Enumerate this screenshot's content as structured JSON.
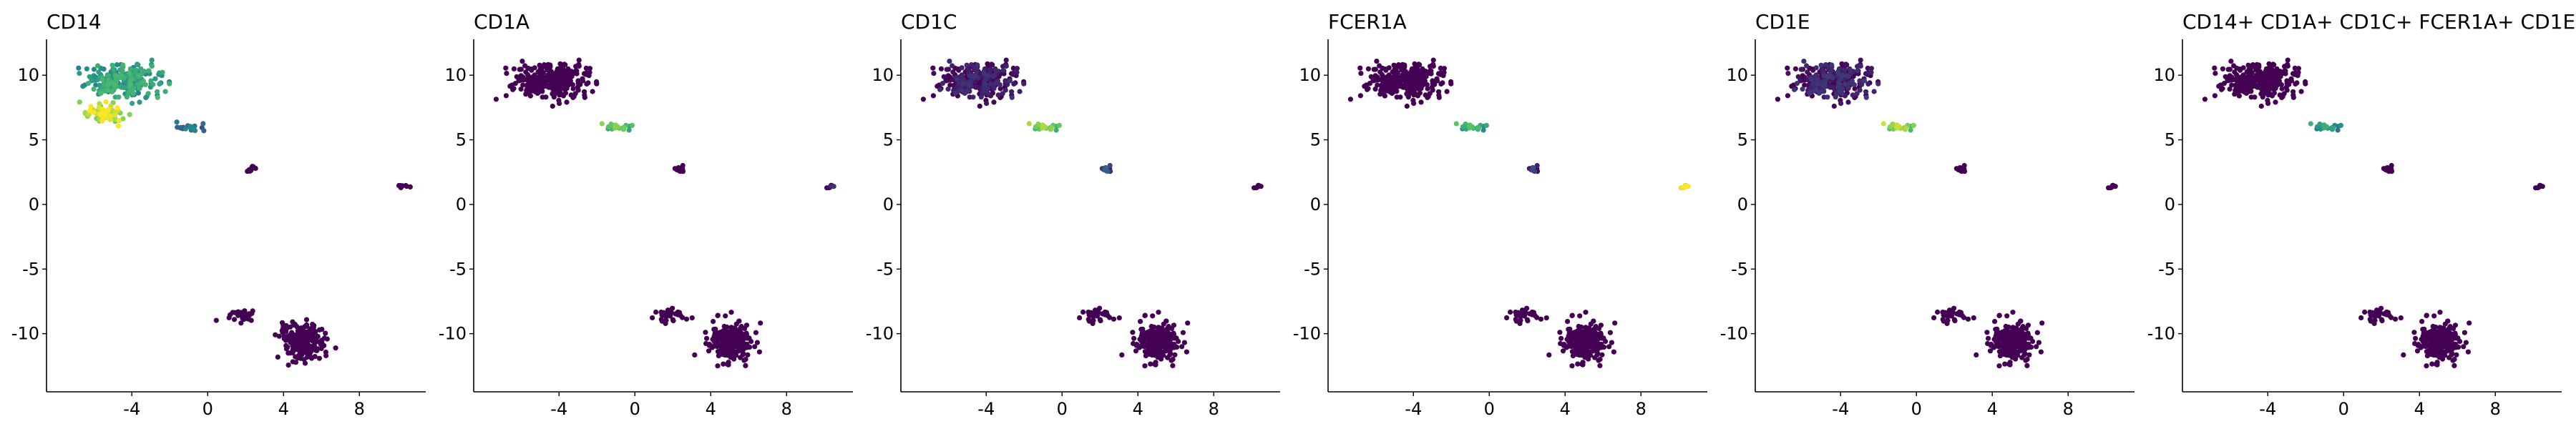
{
  "figure": {
    "panel_titles": [
      "CD14",
      "CD1A",
      "CD1C",
      "FCER1A",
      "CD1E",
      "CD14+ CD1A+ CD1C+ FCER1A+ CD1E"
    ]
  },
  "chart_data": [
    {
      "type": "scatter",
      "title": "CD14",
      "xlabel": "",
      "ylabel": "",
      "xlim": [
        -8.5,
        11.5
      ],
      "ylim": [
        -14.5,
        12.5
      ],
      "xticks": [
        -4,
        0,
        4,
        8
      ],
      "xtick_labels": [
        "-4",
        "0",
        "4",
        "8"
      ],
      "yticks": [
        10,
        5,
        0,
        -5,
        -10
      ],
      "ytick_labels": [
        "10",
        "5",
        "0",
        "-5",
        "-10"
      ],
      "grid": false,
      "legend": "none",
      "colormap": [
        "#440154",
        "#3b528b",
        "#21918c",
        "#5ec962",
        "#fde725"
      ],
      "clusters": [
        {
          "name": "upper cluster",
          "center": [
            -4.5,
            9.5
          ],
          "spread": [
            1.9,
            1.3
          ],
          "n": 260,
          "expression": 0.55
        },
        {
          "name": "hot spot",
          "center": [
            -5.5,
            7.0
          ],
          "spread": [
            0.9,
            0.7
          ],
          "n": 70,
          "expression": 0.9
        },
        {
          "name": "bridge",
          "center": [
            -1.0,
            6.0
          ],
          "spread": [
            1.0,
            0.3
          ],
          "n": 18,
          "expression": 0.35
        },
        {
          "name": "small cluster",
          "center": [
            2.3,
            2.8
          ],
          "spread": [
            0.3,
            0.25
          ],
          "n": 10,
          "expression": 0.0
        },
        {
          "name": "isolated cluster",
          "center": [
            10.3,
            1.4
          ],
          "spread": [
            0.25,
            0.12
          ],
          "n": 8,
          "expression": 0.0
        },
        {
          "name": "lower left group",
          "center": [
            1.8,
            -8.6
          ],
          "spread": [
            0.8,
            0.5
          ],
          "n": 30,
          "expression": 0.0
        },
        {
          "name": "lower main cluster",
          "center": [
            5.0,
            -10.6
          ],
          "spread": [
            1.1,
            1.4
          ],
          "n": 230,
          "expression": 0.0
        }
      ]
    },
    {
      "type": "scatter",
      "title": "CD1A",
      "xlabel": "",
      "ylabel": "",
      "xlim": [
        -8.5,
        11.5
      ],
      "ylim": [
        -14.5,
        12.5
      ],
      "xticks": [
        -4,
        0,
        4,
        8
      ],
      "xtick_labels": [
        "-4",
        "0",
        "4",
        "8"
      ],
      "yticks": [
        10,
        5,
        0,
        -5,
        -10
      ],
      "ytick_labels": [
        "10",
        "5",
        "0",
        "-5",
        "-10"
      ],
      "grid": false,
      "legend": "none",
      "colormap": [
        "#440154",
        "#3b528b",
        "#21918c",
        "#5ec962",
        "#fde725"
      ],
      "clusters": [
        {
          "name": "upper cluster",
          "center": [
            -4.5,
            9.5
          ],
          "spread": [
            1.9,
            1.3
          ],
          "n": 330,
          "expression": 0.0
        },
        {
          "name": "bridge",
          "center": [
            -1.0,
            6.0
          ],
          "spread": [
            1.0,
            0.3
          ],
          "n": 18,
          "expression": 0.7
        },
        {
          "name": "small cluster",
          "center": [
            2.3,
            2.8
          ],
          "spread": [
            0.3,
            0.25
          ],
          "n": 10,
          "expression": 0.0
        },
        {
          "name": "isolated cluster",
          "center": [
            10.3,
            1.4
          ],
          "spread": [
            0.25,
            0.12
          ],
          "n": 8,
          "expression": 0.05
        },
        {
          "name": "lower left group",
          "center": [
            1.8,
            -8.6
          ],
          "spread": [
            0.8,
            0.5
          ],
          "n": 30,
          "expression": 0.0
        },
        {
          "name": "lower main cluster",
          "center": [
            5.0,
            -10.6
          ],
          "spread": [
            1.1,
            1.4
          ],
          "n": 230,
          "expression": 0.0
        }
      ]
    },
    {
      "type": "scatter",
      "title": "CD1C",
      "xlabel": "",
      "ylabel": "",
      "xlim": [
        -8.5,
        11.5
      ],
      "ylim": [
        -14.5,
        12.5
      ],
      "xticks": [
        -4,
        0,
        4,
        8
      ],
      "xtick_labels": [
        "-4",
        "0",
        "4",
        "8"
      ],
      "yticks": [
        10,
        5,
        0,
        -5,
        -10
      ],
      "ytick_labels": [
        "10",
        "5",
        "0",
        "-5",
        "-10"
      ],
      "grid": false,
      "legend": "none",
      "colormap": [
        "#440154",
        "#3b528b",
        "#21918c",
        "#5ec962",
        "#fde725"
      ],
      "clusters": [
        {
          "name": "upper cluster",
          "center": [
            -4.5,
            9.5
          ],
          "spread": [
            1.9,
            1.3
          ],
          "n": 330,
          "expression": 0.03
        },
        {
          "name": "bridge",
          "center": [
            -1.0,
            6.0
          ],
          "spread": [
            1.0,
            0.3
          ],
          "n": 18,
          "expression": 0.75
        },
        {
          "name": "small cluster",
          "center": [
            2.3,
            2.8
          ],
          "spread": [
            0.3,
            0.25
          ],
          "n": 10,
          "expression": 0.2
        },
        {
          "name": "isolated cluster",
          "center": [
            10.3,
            1.4
          ],
          "spread": [
            0.25,
            0.12
          ],
          "n": 8,
          "expression": 0.0
        },
        {
          "name": "lower left group",
          "center": [
            1.8,
            -8.6
          ],
          "spread": [
            0.8,
            0.5
          ],
          "n": 30,
          "expression": 0.0
        },
        {
          "name": "lower main cluster",
          "center": [
            5.0,
            -10.6
          ],
          "spread": [
            1.1,
            1.4
          ],
          "n": 230,
          "expression": 0.0
        }
      ]
    },
    {
      "type": "scatter",
      "title": "FCER1A",
      "xlabel": "",
      "ylabel": "",
      "xlim": [
        -8.5,
        11.5
      ],
      "ylim": [
        -14.5,
        12.5
      ],
      "xticks": [
        -4,
        0,
        4,
        8
      ],
      "xtick_labels": [
        "-4",
        "0",
        "4",
        "8"
      ],
      "yticks": [
        10,
        5,
        0,
        -5,
        -10
      ],
      "ytick_labels": [
        "10",
        "5",
        "0",
        "-5",
        "-10"
      ],
      "grid": false,
      "legend": "none",
      "colormap": [
        "#440154",
        "#3b528b",
        "#21918c",
        "#5ec962",
        "#fde725"
      ],
      "clusters": [
        {
          "name": "upper cluster",
          "center": [
            -4.5,
            9.5
          ],
          "spread": [
            1.9,
            1.3
          ],
          "n": 330,
          "expression": 0.0
        },
        {
          "name": "bridge",
          "center": [
            -1.0,
            6.0
          ],
          "spread": [
            1.0,
            0.3
          ],
          "n": 18,
          "expression": 0.6
        },
        {
          "name": "small cluster",
          "center": [
            2.3,
            2.8
          ],
          "spread": [
            0.3,
            0.25
          ],
          "n": 10,
          "expression": 0.1
        },
        {
          "name": "isolated cluster",
          "center": [
            10.3,
            1.4
          ],
          "spread": [
            0.25,
            0.12
          ],
          "n": 8,
          "expression": 1.0
        },
        {
          "name": "lower left group",
          "center": [
            1.8,
            -8.6
          ],
          "spread": [
            0.8,
            0.5
          ],
          "n": 30,
          "expression": 0.0
        },
        {
          "name": "lower main cluster",
          "center": [
            5.0,
            -10.6
          ],
          "spread": [
            1.1,
            1.4
          ],
          "n": 230,
          "expression": 0.0
        }
      ]
    },
    {
      "type": "scatter",
      "title": "CD1E",
      "xlabel": "",
      "ylabel": "",
      "xlim": [
        -8.5,
        11.5
      ],
      "ylim": [
        -14.5,
        12.5
      ],
      "xticks": [
        -4,
        0,
        4,
        8
      ],
      "xtick_labels": [
        "-4",
        "0",
        "4",
        "8"
      ],
      "yticks": [
        10,
        5,
        0,
        -5,
        -10
      ],
      "ytick_labels": [
        "10",
        "5",
        "0",
        "-5",
        "-10"
      ],
      "grid": false,
      "legend": "none",
      "colormap": [
        "#440154",
        "#3b528b",
        "#21918c",
        "#5ec962",
        "#fde725"
      ],
      "clusters": [
        {
          "name": "upper cluster",
          "center": [
            -4.5,
            9.5
          ],
          "spread": [
            1.9,
            1.3
          ],
          "n": 330,
          "expression": 0.05
        },
        {
          "name": "bridge",
          "center": [
            -1.0,
            6.0
          ],
          "spread": [
            1.0,
            0.3
          ],
          "n": 18,
          "expression": 0.8
        },
        {
          "name": "small cluster",
          "center": [
            2.3,
            2.8
          ],
          "spread": [
            0.3,
            0.25
          ],
          "n": 10,
          "expression": 0.0
        },
        {
          "name": "isolated cluster",
          "center": [
            10.3,
            1.4
          ],
          "spread": [
            0.25,
            0.12
          ],
          "n": 8,
          "expression": 0.0
        },
        {
          "name": "lower left group",
          "center": [
            1.8,
            -8.6
          ],
          "spread": [
            0.8,
            0.5
          ],
          "n": 30,
          "expression": 0.0
        },
        {
          "name": "lower main cluster",
          "center": [
            5.0,
            -10.6
          ],
          "spread": [
            1.1,
            1.4
          ],
          "n": 230,
          "expression": 0.0
        }
      ]
    },
    {
      "type": "scatter",
      "title": "CD14+ CD1A+ CD1C+ FCER1A+ CD1E",
      "xlabel": "",
      "ylabel": "",
      "xlim": [
        -8.5,
        11.5
      ],
      "ylim": [
        -14.5,
        12.5
      ],
      "xticks": [
        -4,
        0,
        4,
        8
      ],
      "xtick_labels": [
        "-4",
        "0",
        "4",
        "8"
      ],
      "yticks": [
        10,
        5,
        0,
        -5,
        -10
      ],
      "ytick_labels": [
        "10",
        "5",
        "0",
        "-5",
        "-10"
      ],
      "grid": false,
      "legend": "none",
      "colormap": [
        "#440154",
        "#3b528b",
        "#21918c",
        "#5ec962",
        "#fde725"
      ],
      "clusters": [
        {
          "name": "upper cluster",
          "center": [
            -4.5,
            9.5
          ],
          "spread": [
            1.9,
            1.3
          ],
          "n": 330,
          "expression": 0.0
        },
        {
          "name": "bridge",
          "center": [
            -1.0,
            6.0
          ],
          "spread": [
            1.0,
            0.3
          ],
          "n": 18,
          "expression": 0.5
        },
        {
          "name": "small cluster",
          "center": [
            2.3,
            2.8
          ],
          "spread": [
            0.3,
            0.25
          ],
          "n": 10,
          "expression": 0.0
        },
        {
          "name": "isolated cluster",
          "center": [
            10.3,
            1.4
          ],
          "spread": [
            0.25,
            0.12
          ],
          "n": 8,
          "expression": 0.0
        },
        {
          "name": "lower left group",
          "center": [
            1.8,
            -8.6
          ],
          "spread": [
            0.8,
            0.5
          ],
          "n": 30,
          "expression": 0.0
        },
        {
          "name": "lower main cluster",
          "center": [
            5.0,
            -10.6
          ],
          "spread": [
            1.1,
            1.4
          ],
          "n": 230,
          "expression": 0.0
        }
      ]
    }
  ]
}
